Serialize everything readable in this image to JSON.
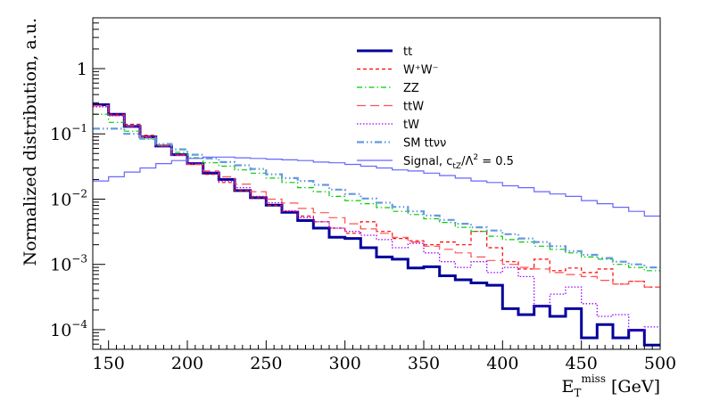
{
  "chart_data": {
    "type": "line",
    "style": "step histogram",
    "y_scale": "log",
    "ylabel": "Normalized distribution, a.u.",
    "xlabel_main": "E",
    "xlabel_sub": "T",
    "xlabel_sup": "miss",
    "xlabel_unit": " [GeV]",
    "xlim": [
      140,
      500
    ],
    "ylim": [
      5e-05,
      6
    ],
    "x_ticks": [
      150,
      200,
      250,
      300,
      350,
      400,
      450,
      500
    ],
    "x_tick_labels": [
      "150",
      "200",
      "250",
      "300",
      "350",
      "400",
      "450",
      "500"
    ],
    "y_ticks": [
      {
        "value": 1,
        "base": "1",
        "exp": ""
      },
      {
        "value": 0.1,
        "base": "10",
        "exp": "−1"
      },
      {
        "value": 0.01,
        "base": "10",
        "exp": "−2"
      },
      {
        "value": 0.001,
        "base": "10",
        "exp": "−3"
      },
      {
        "value": 0.0001,
        "base": "10",
        "exp": "−4"
      }
    ],
    "bin_edges": [
      140,
      150,
      160,
      170,
      180,
      190,
      200,
      210,
      220,
      230,
      240,
      250,
      260,
      270,
      280,
      290,
      300,
      310,
      320,
      330,
      340,
      350,
      360,
      370,
      380,
      390,
      400,
      410,
      420,
      430,
      440,
      450,
      460,
      470,
      480,
      490,
      500
    ],
    "legend_position": "top-right",
    "series": [
      {
        "name": "tt",
        "legend": "tt",
        "color": "#00009c",
        "dash": "",
        "width": 3,
        "values": [
          0.28,
          0.2,
          0.13,
          0.09,
          0.065,
          0.048,
          0.035,
          0.025,
          0.02,
          0.0135,
          0.0105,
          0.0081,
          0.0063,
          0.0047,
          0.0036,
          0.0026,
          0.0025,
          0.0018,
          0.0013,
          0.0012,
          0.00088,
          0.00092,
          0.00067,
          0.00058,
          0.00052,
          0.00048,
          0.00021,
          0.00017,
          0.00023,
          0.00016,
          0.00021,
          7.5e-05,
          0.00012,
          7.5e-05,
          9.8e-05,
          5.8e-05
        ]
      },
      {
        "name": "WW",
        "legend": "W⁺W⁻",
        "color": "#ff0000",
        "dash": "4,3",
        "width": 1.2,
        "values": [
          0.27,
          0.2,
          0.14,
          0.095,
          0.067,
          0.048,
          0.034,
          0.024,
          0.018,
          0.0135,
          0.0105,
          0.008,
          0.0065,
          0.0055,
          0.0045,
          0.0036,
          0.003,
          0.0045,
          0.0032,
          0.0025,
          0.0023,
          0.002,
          0.0022,
          0.002,
          0.0032,
          0.0018,
          0.0011,
          0.00085,
          0.0012,
          0.0008,
          0.00088,
          0.00075,
          0.00085,
          0.0005,
          0.00055,
          0.00045
        ]
      },
      {
        "name": "ZZ",
        "legend": "ZZ",
        "color": "#00cc00",
        "dash": "6,3,1.5,3",
        "width": 1.2,
        "values": [
          0.2,
          0.15,
          0.11,
          0.083,
          0.066,
          0.052,
          0.043,
          0.036,
          0.032,
          0.028,
          0.025,
          0.021,
          0.018,
          0.015,
          0.013,
          0.011,
          0.0095,
          0.0085,
          0.0074,
          0.0065,
          0.0058,
          0.005,
          0.0044,
          0.0037,
          0.0032,
          0.0027,
          0.0024,
          0.0022,
          0.0019,
          0.0017,
          0.0015,
          0.0013,
          0.0012,
          0.001,
          0.0009,
          0.0008
        ]
      },
      {
        "name": "ttW",
        "legend": "ttW",
        "color": "#ff5050",
        "dash": "10,5",
        "width": 1.2,
        "values": [
          0.27,
          0.19,
          0.13,
          0.09,
          0.065,
          0.047,
          0.034,
          0.027,
          0.022,
          0.017,
          0.013,
          0.01,
          0.0087,
          0.0072,
          0.0062,
          0.0052,
          0.0042,
          0.0035,
          0.003,
          0.0026,
          0.0022,
          0.0019,
          0.0017,
          0.0015,
          0.0013,
          0.00115,
          0.001,
          0.0009,
          0.00085,
          0.00075,
          0.0007,
          0.00065,
          0.00057,
          0.0005,
          0.00055,
          0.00045
        ]
      },
      {
        "name": "tW",
        "legend": "tW",
        "color": "#9900ff",
        "dash": "1.5,2",
        "width": 1.3,
        "values": [
          0.26,
          0.19,
          0.13,
          0.09,
          0.065,
          0.047,
          0.035,
          0.026,
          0.019,
          0.015,
          0.011,
          0.0088,
          0.0066,
          0.0052,
          0.0045,
          0.0036,
          0.0032,
          0.0028,
          0.0024,
          0.0018,
          0.0021,
          0.0015,
          0.0011,
          0.0009,
          0.0011,
          0.00075,
          0.0009,
          0.00065,
          0.00023,
          0.00035,
          0.00045,
          0.00025,
          0.00016,
          0.00017,
          9.5e-05,
          0.00011
        ]
      },
      {
        "name": "SMttvv",
        "legend": "SM ttνν",
        "color": "#6699dd",
        "dash": "8,3,1.5,3,1.5,3",
        "width": 2.2,
        "values": [
          0.12,
          0.12,
          0.1,
          0.085,
          0.07,
          0.058,
          0.048,
          0.042,
          0.037,
          0.033,
          0.029,
          0.024,
          0.021,
          0.019,
          0.0165,
          0.014,
          0.012,
          0.0102,
          0.0088,
          0.0076,
          0.0065,
          0.0056,
          0.0048,
          0.0042,
          0.0037,
          0.0033,
          0.0029,
          0.0025,
          0.0022,
          0.0019,
          0.0016,
          0.0014,
          0.00125,
          0.0011,
          0.001,
          0.0009
        ]
      },
      {
        "name": "Signal",
        "legend": "Signal, c_tZ/Λ² = 0.5",
        "color": "#6666ff",
        "dash": "",
        "width": 1.2,
        "values": [
          0.019,
          0.022,
          0.026,
          0.03,
          0.035,
          0.039,
          0.042,
          0.044,
          0.044,
          0.043,
          0.042,
          0.041,
          0.04,
          0.039,
          0.037,
          0.036,
          0.034,
          0.032,
          0.03,
          0.028,
          0.027,
          0.025,
          0.023,
          0.021,
          0.019,
          0.018,
          0.016,
          0.015,
          0.013,
          0.012,
          0.011,
          0.0095,
          0.0085,
          0.0075,
          0.0065,
          0.0055
        ]
      }
    ],
    "legend": {
      "sig_prefix": "Signal, c",
      "sig_sub": "tZ",
      "sig_mid": "/Λ",
      "sig_sup": "2",
      "sig_suffix": " = 0.5"
    }
  }
}
